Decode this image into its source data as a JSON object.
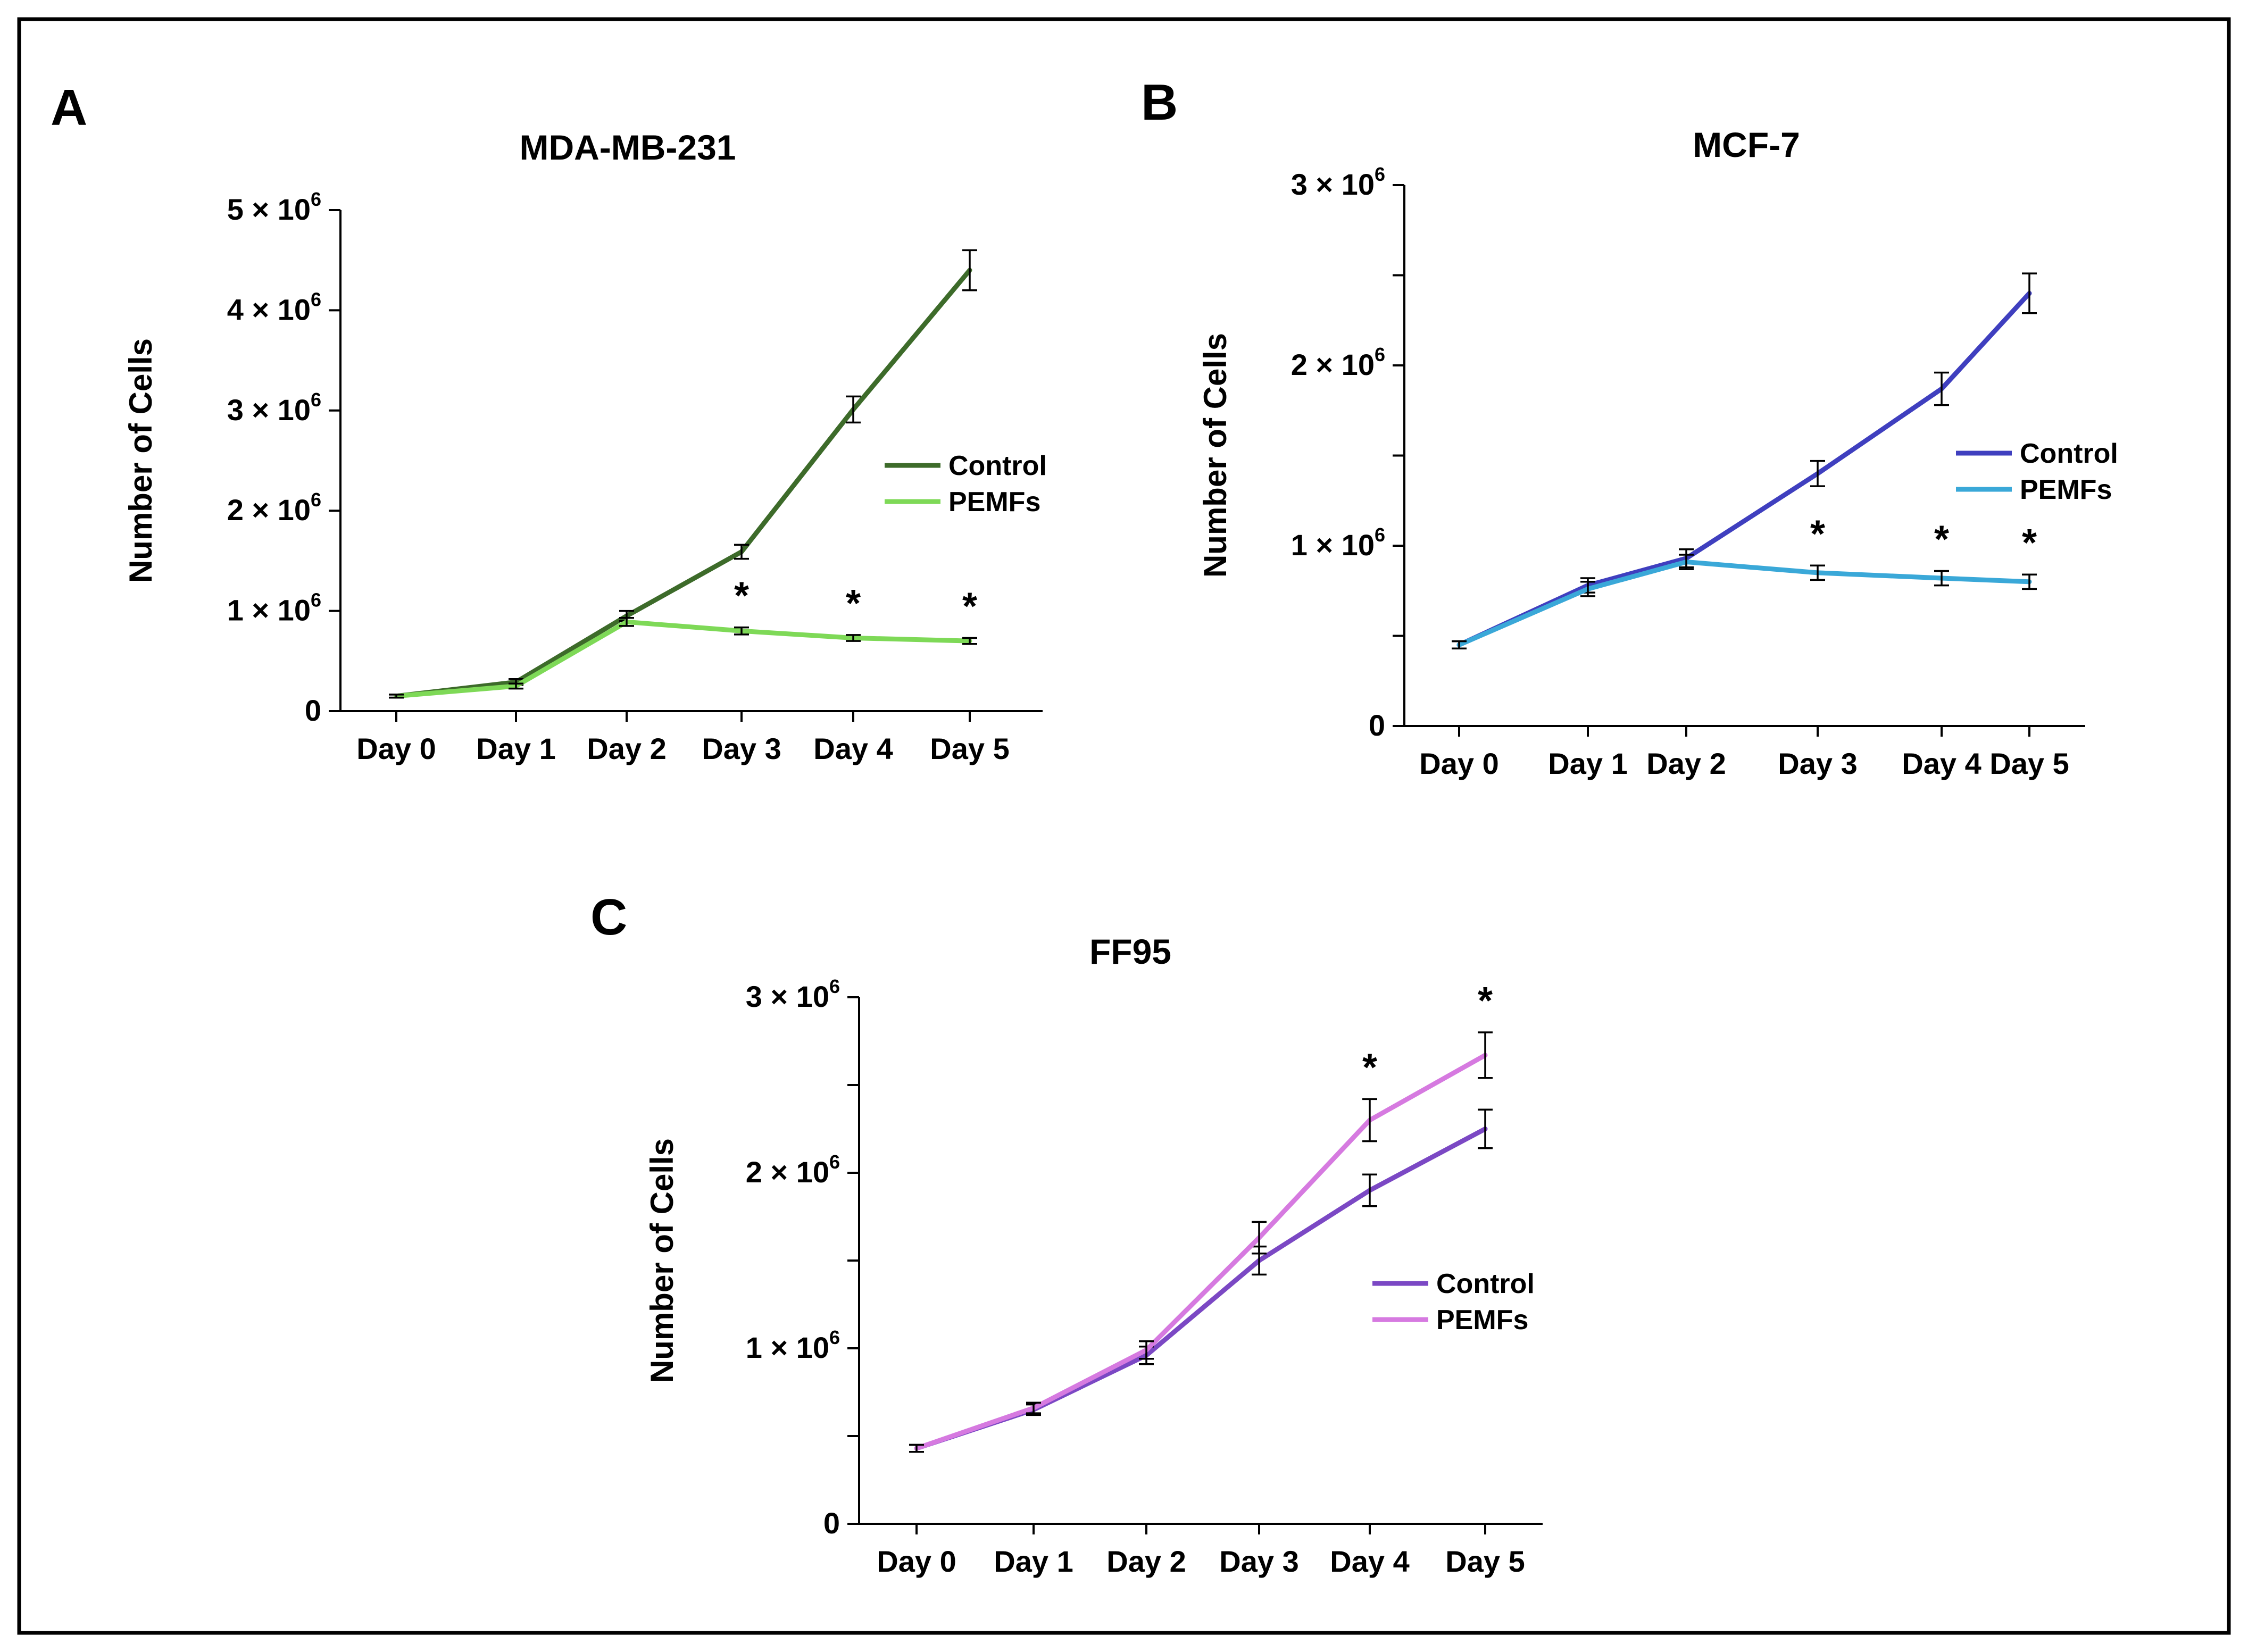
{
  "figure": {
    "border_color": "#000000"
  },
  "chart_data": [
    {
      "type": "line",
      "panel": "A",
      "title": "MDA-MB-231",
      "xlabel": "",
      "ylabel": "Number of Cells",
      "categories": [
        "Day 0",
        "Day 1",
        "Day 2",
        "Day 3",
        "Day 4",
        "Day 5"
      ],
      "ylim": [
        0,
        5000000
      ],
      "yticks": [
        {
          "value": 0,
          "mantissa": "0",
          "exponent": ""
        },
        {
          "value": 1000000,
          "mantissa": "1 × 10",
          "exponent": "6"
        },
        {
          "value": 2000000,
          "mantissa": "2 × 10",
          "exponent": "6"
        },
        {
          "value": 3000000,
          "mantissa": "3 × 10",
          "exponent": "6"
        },
        {
          "value": 4000000,
          "mantissa": "4 × 10",
          "exponent": "6"
        },
        {
          "value": 5000000,
          "mantissa": "5 × 10",
          "exponent": "6"
        }
      ],
      "legend_position": "right",
      "series": [
        {
          "name": "Control",
          "color": "#3d6b2a",
          "values": [
            150000,
            290000,
            950000,
            1590000,
            3010000,
            4400000
          ],
          "errors": [
            15000,
            30000,
            50000,
            70000,
            130000,
            200000
          ]
        },
        {
          "name": "PEMFs",
          "color": "#7ed957",
          "values": [
            150000,
            250000,
            890000,
            800000,
            730000,
            700000
          ],
          "errors": [
            15000,
            25000,
            40000,
            35000,
            30000,
            30000
          ]
        }
      ],
      "significance": [
        "",
        "",
        "",
        "*",
        "*",
        "*"
      ]
    },
    {
      "type": "line",
      "panel": "B",
      "title": "MCF-7",
      "xlabel": "",
      "ylabel": "Number of Cells",
      "categories": [
        "Day 0",
        "Day 1",
        "Day 2",
        "Day 3",
        "Day 4",
        "Day 5"
      ],
      "ylim": [
        0,
        3000000
      ],
      "yticks": [
        {
          "value": 0,
          "mantissa": "0",
          "exponent": ""
        },
        {
          "value": 500000,
          "mantissa": "",
          "exponent": ""
        },
        {
          "value": 1000000,
          "mantissa": "1 × 10",
          "exponent": "6"
        },
        {
          "value": 1500000,
          "mantissa": "",
          "exponent": ""
        },
        {
          "value": 2000000,
          "mantissa": "2 × 10",
          "exponent": "6"
        },
        {
          "value": 2500000,
          "mantissa": "",
          "exponent": ""
        },
        {
          "value": 3000000,
          "mantissa": "3 × 10",
          "exponent": "6"
        }
      ],
      "legend_position": "right",
      "series": [
        {
          "name": "Control",
          "color": "#3f3fbf",
          "values": [
            450000,
            780000,
            930000,
            1400000,
            1870000,
            2400000
          ],
          "errors": [
            20000,
            40000,
            50000,
            70000,
            90000,
            110000
          ]
        },
        {
          "name": "PEMFs",
          "color": "#3aa8d8",
          "values": [
            450000,
            760000,
            910000,
            850000,
            820000,
            800000
          ],
          "errors": [
            20000,
            40000,
            40000,
            40000,
            40000,
            40000
          ]
        }
      ],
      "significance": [
        "",
        "",
        "",
        "*",
        "*",
        "*"
      ]
    },
    {
      "type": "line",
      "panel": "C",
      "title": "FF95",
      "xlabel": "",
      "ylabel": "Number of Cells",
      "categories": [
        "Day 0",
        "Day 1",
        "Day 2",
        "Day 3",
        "Day 4",
        "Day 5"
      ],
      "ylim": [
        0,
        3000000
      ],
      "yticks": [
        {
          "value": 0,
          "mantissa": "0",
          "exponent": ""
        },
        {
          "value": 500000,
          "mantissa": "",
          "exponent": ""
        },
        {
          "value": 1000000,
          "mantissa": "1 × 10",
          "exponent": "6"
        },
        {
          "value": 1500000,
          "mantissa": "",
          "exponent": ""
        },
        {
          "value": 2000000,
          "mantissa": "2 × 10",
          "exponent": "6"
        },
        {
          "value": 2500000,
          "mantissa": "",
          "exponent": ""
        },
        {
          "value": 3000000,
          "mantissa": "3 × 10",
          "exponent": "6"
        }
      ],
      "legend_position": "right",
      "series": [
        {
          "name": "Control",
          "color": "#7b48c4",
          "values": [
            430000,
            650000,
            960000,
            1500000,
            1900000,
            2250000
          ],
          "errors": [
            20000,
            30000,
            50000,
            80000,
            90000,
            110000
          ]
        },
        {
          "name": "PEMFs",
          "color": "#d67ae0",
          "values": [
            430000,
            660000,
            990000,
            1630000,
            2300000,
            2670000
          ],
          "errors": [
            20000,
            30000,
            50000,
            90000,
            120000,
            130000
          ]
        }
      ],
      "significance": [
        "",
        "",
        "",
        "",
        "*",
        "*"
      ]
    }
  ]
}
